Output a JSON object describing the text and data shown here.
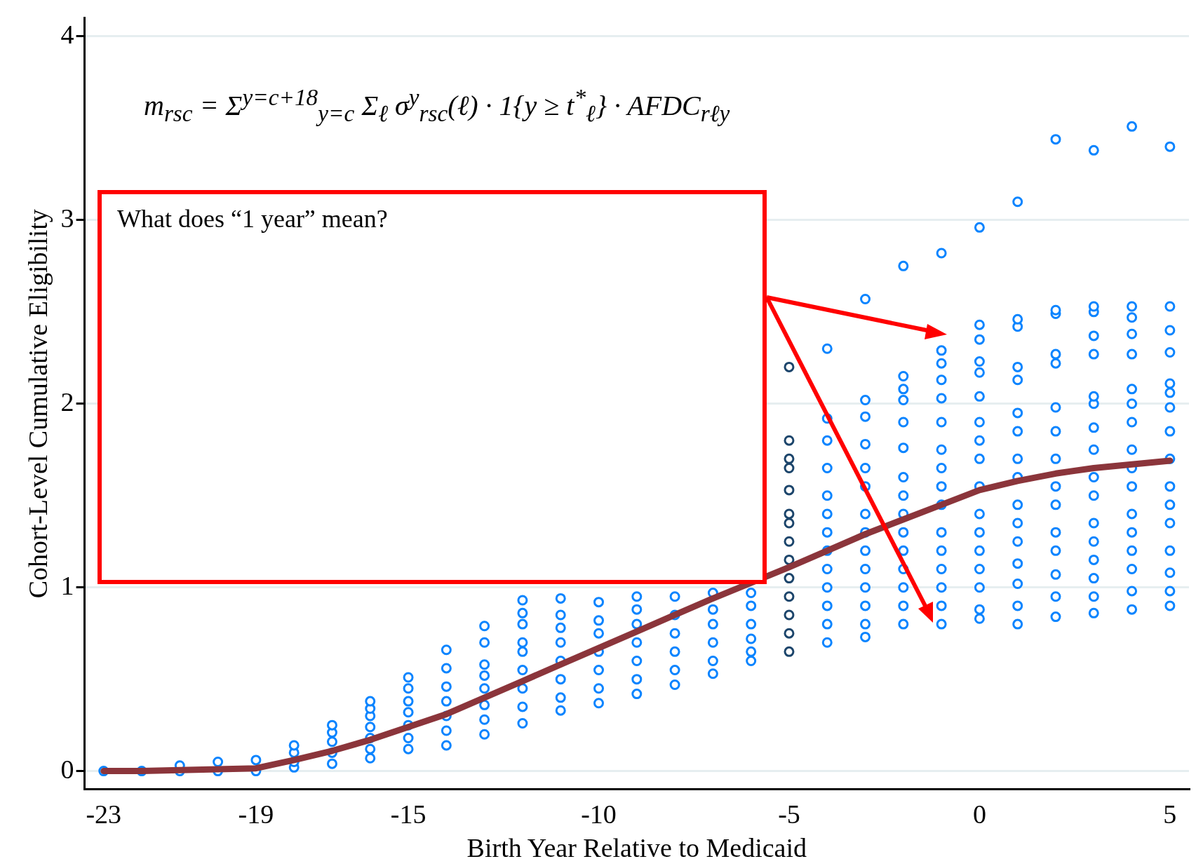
{
  "chart_data": {
    "type": "scatter",
    "xlabel": "Birth Year Relative to Medicaid",
    "ylabel": "Cohort-Level Cumulative Eligibility",
    "xlim": [
      -23.5,
      5.5
    ],
    "xticks": [
      -23,
      -19,
      -15,
      -10,
      -5,
      0,
      5
    ],
    "ylim": [
      -0.1,
      4.1
    ],
    "yticks": [
      0,
      1,
      2,
      3,
      4
    ],
    "grid": "y",
    "marker": "circle",
    "annotations": [
      "m$_{rsc}$ = Σ$^{y=c+18}$$_{y=c}$ Σ$_{ℓ}$ σ$^{y}$$_{rsc}$(ℓ) · 1{y ≥ t$^{*}$$_{ℓ}$} · AFDC$_{rℓy}$",
      "What does “1 year” mean?"
    ],
    "series": [
      {
        "color": "#0a84ff",
        "x": [
          -23,
          -22,
          -21,
          -21,
          -20,
          -20,
          -19,
          -19,
          -18,
          -18,
          -18,
          -18,
          -17,
          -17,
          -17,
          -17,
          -17,
          -16,
          -16,
          -16,
          -16,
          -16,
          -16,
          -16,
          -15,
          -15,
          -15,
          -15,
          -15,
          -15,
          -15,
          -14,
          -14,
          -14,
          -14,
          -14,
          -14,
          -14,
          -13,
          -13,
          -13,
          -13,
          -13,
          -13,
          -13,
          -13,
          -12,
          -12,
          -12,
          -12,
          -12,
          -12,
          -12,
          -12,
          -12,
          -11,
          -11,
          -11,
          -11,
          -11,
          -11,
          -11,
          -11,
          -10,
          -10,
          -10,
          -10,
          -10,
          -10,
          -10,
          -9,
          -9,
          -9,
          -9,
          -9,
          -9,
          -9,
          -8,
          -8,
          -8,
          -8,
          -8,
          -8,
          -7,
          -7,
          -7,
          -7,
          -7,
          -7,
          -6,
          -6,
          -6,
          -6,
          -6,
          -6,
          -4,
          -4,
          -4,
          -4,
          -4,
          -4,
          -4,
          -4,
          -4,
          -4,
          -4,
          -4,
          -4,
          -3,
          -3,
          -3,
          -3,
          -3,
          -3,
          -3,
          -3,
          -3,
          -3,
          -3,
          -3,
          -3,
          -3,
          -2,
          -2,
          -2,
          -2,
          -2,
          -2,
          -2,
          -2,
          -2,
          -2,
          -2,
          -2,
          -2,
          -2,
          -2,
          -1,
          -1,
          -1,
          -1,
          -1,
          -1,
          -1,
          -1,
          -1,
          -1,
          -1,
          -1,
          -1,
          -1,
          -1,
          -1,
          0,
          0,
          0,
          0,
          0,
          0,
          0,
          0,
          0,
          0,
          0,
          0,
          0,
          0,
          0,
          0,
          0,
          1,
          1,
          1,
          1,
          1,
          1,
          1,
          1,
          1,
          1,
          1,
          1,
          1,
          1,
          1,
          1,
          2,
          2,
          2,
          2,
          2,
          2,
          2,
          2,
          2,
          2,
          2,
          2,
          2,
          2,
          2,
          3,
          3,
          3,
          3,
          3,
          3,
          3,
          3,
          3,
          3,
          3,
          3,
          3,
          3,
          3,
          3,
          3,
          4,
          4,
          4,
          4,
          4,
          4,
          4,
          4,
          4,
          4,
          4,
          4,
          4,
          4,
          4,
          4,
          4,
          5,
          5,
          5,
          5,
          5,
          5,
          5,
          5,
          5,
          5,
          5,
          5,
          5,
          5,
          5,
          5
        ],
        "values": [
          0,
          0,
          0,
          0.03,
          0,
          0.05,
          0,
          0.06,
          0.02,
          0.05,
          0.1,
          0.14,
          0.04,
          0.1,
          0.16,
          0.21,
          0.25,
          0.07,
          0.12,
          0.18,
          0.24,
          0.3,
          0.34,
          0.38,
          0.12,
          0.18,
          0.25,
          0.32,
          0.38,
          0.45,
          0.51,
          0.14,
          0.22,
          0.3,
          0.38,
          0.46,
          0.56,
          0.66,
          0.2,
          0.28,
          0.36,
          0.45,
          0.52,
          0.58,
          0.7,
          0.79,
          0.26,
          0.35,
          0.45,
          0.55,
          0.65,
          0.7,
          0.8,
          0.86,
          0.93,
          0.33,
          0.4,
          0.5,
          0.6,
          0.7,
          0.78,
          0.85,
          0.94,
          0.37,
          0.45,
          0.55,
          0.65,
          0.75,
          0.82,
          0.92,
          0.42,
          0.5,
          0.6,
          0.7,
          0.8,
          0.88,
          0.95,
          0.47,
          0.55,
          0.65,
          0.75,
          0.85,
          0.95,
          0.53,
          0.6,
          0.7,
          0.8,
          0.88,
          0.97,
          0.6,
          0.65,
          0.72,
          0.8,
          0.9,
          0.97,
          0.7,
          0.8,
          0.9,
          1,
          1.1,
          1.2,
          1.3,
          1.4,
          1.5,
          1.65,
          1.8,
          1.92,
          2.3,
          0.73,
          0.8,
          0.9,
          1,
          1.1,
          1.2,
          1.3,
          1.4,
          1.55,
          1.65,
          1.78,
          1.93,
          2.02,
          2.57,
          0.8,
          0.9,
          1,
          1.1,
          1.2,
          1.3,
          1.4,
          1.5,
          1.6,
          1.76,
          1.9,
          2.02,
          2.08,
          2.15,
          2.75,
          0.8,
          0.9,
          1,
          1.1,
          1.2,
          1.3,
          1.45,
          1.55,
          1.65,
          1.75,
          1.9,
          2.03,
          2.13,
          2.22,
          2.29,
          2.82,
          0.83,
          0.88,
          1,
          1.1,
          1.2,
          1.3,
          1.4,
          1.55,
          1.7,
          1.8,
          1.9,
          2.04,
          2.17,
          2.23,
          2.35,
          2.43,
          2.96,
          0.8,
          0.9,
          1.02,
          1.13,
          1.25,
          1.35,
          1.45,
          1.6,
          1.7,
          1.85,
          1.95,
          2.13,
          2.2,
          2.42,
          2.46,
          3.1,
          0.84,
          0.95,
          1.07,
          1.2,
          1.3,
          1.45,
          1.55,
          1.7,
          1.85,
          1.98,
          2.22,
          2.27,
          2.49,
          2.51,
          3.44,
          0.86,
          0.95,
          1.05,
          1.15,
          1.25,
          1.35,
          1.5,
          1.6,
          1.75,
          1.87,
          2,
          2.04,
          2.27,
          2.37,
          2.5,
          2.53,
          3.38,
          0.88,
          0.98,
          1.1,
          1.2,
          1.3,
          1.4,
          1.55,
          1.65,
          1.75,
          1.9,
          2,
          2.08,
          2.27,
          2.38,
          2.47,
          2.53,
          3.51,
          0.9,
          0.98,
          1.08,
          1.2,
          1.35,
          1.45,
          1.55,
          1.7,
          1.85,
          1.98,
          2.06,
          2.11,
          2.28,
          2.4,
          2.53,
          3.4
        ]
      },
      {
        "color": "#1c456b",
        "x": [
          -5,
          -5,
          -5,
          -5,
          -5,
          -5,
          -5,
          -5,
          -5,
          -5,
          -5,
          -5,
          -5,
          -5
        ],
        "values": [
          0.65,
          0.75,
          0.85,
          0.95,
          1.05,
          1.15,
          1.25,
          1.35,
          1.4,
          1.53,
          1.65,
          1.7,
          1.8,
          2.2
        ]
      },
      {
        "type": "line",
        "marker": "none",
        "color": "#8b353b",
        "x": [
          -23,
          -22,
          -21,
          -20,
          -19,
          -18,
          -17,
          -16,
          -15,
          -14,
          -13,
          -12,
          -11,
          -10,
          -9,
          -8,
          -7,
          -6,
          -5,
          -4,
          -3,
          -2,
          -1,
          0,
          1,
          2,
          3,
          4,
          5
        ],
        "values": [
          0,
          0,
          0.005,
          0.01,
          0.015,
          0.06,
          0.11,
          0.17,
          0.24,
          0.31,
          0.4,
          0.49,
          0.58,
          0.67,
          0.76,
          0.85,
          0.94,
          null,
          1.11,
          1.2,
          1.29,
          1.37,
          1.45,
          1.53,
          1.58,
          1.62,
          1.65,
          1.67,
          1.69
        ]
      }
    ]
  }
}
